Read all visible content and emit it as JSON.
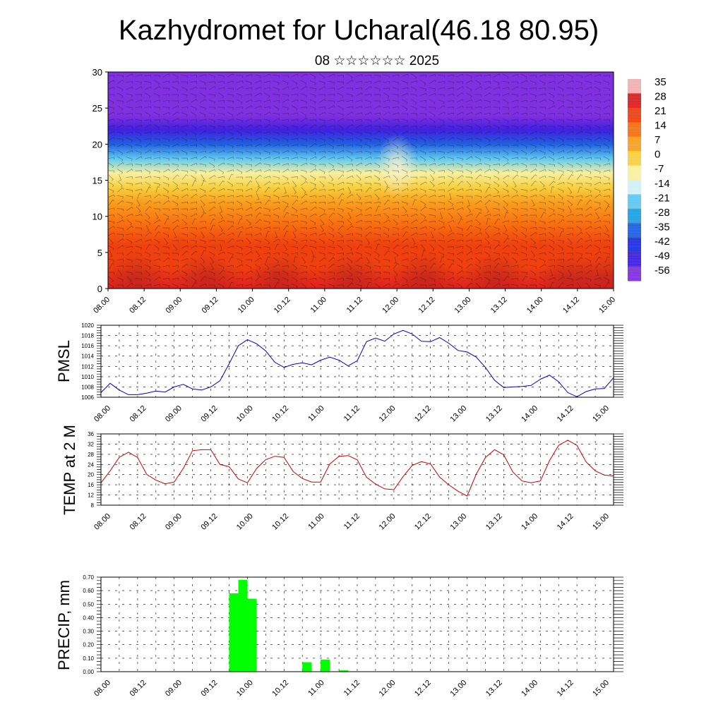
{
  "title": "Kazhydromet for Ucharal(46.18 80.95)",
  "subtitle": "08 ☆☆☆☆☆☆ 2025",
  "colorbar": {
    "labels": [
      "35",
      "28",
      "21",
      "14",
      "7",
      "0",
      "-7",
      "-14",
      "-21",
      "-28",
      "-35",
      "-42",
      "-49",
      "-56"
    ],
    "colors": [
      "#f0b0b0",
      "#dc2020",
      "#f04010",
      "#f87010",
      "#f8a020",
      "#f8d040",
      "#f8f0a0",
      "#d0f0f8",
      "#60c8f0",
      "#20a0e0",
      "#2060e0",
      "#2030e0",
      "#4020e0",
      "#8030e0"
    ]
  },
  "time_labels": [
    "08.00",
    "08.12",
    "09.00",
    "09.12",
    "10.00",
    "10.12",
    "11.00",
    "11.12",
    "12.00",
    "12.12",
    "13.00",
    "13.12",
    "14.00",
    "14.12",
    "15.00"
  ],
  "chart_data": [
    {
      "type": "heatmap",
      "title": "Kazhydromet for Ucharal(46.18 80.95)",
      "subtitle": "08 ☆☆☆☆☆☆ 2025",
      "ylim": [
        0,
        30
      ],
      "yticks": [
        0,
        5,
        10,
        15,
        20,
        25,
        30
      ],
      "xlim": [
        0,
        168
      ],
      "colorbar_range": [
        -56,
        35
      ],
      "level_temperature_profile": {
        "levels": [
          0,
          3,
          6,
          9,
          12,
          14,
          16,
          18,
          20,
          22,
          24,
          26,
          28,
          30
        ],
        "values": [
          25,
          22,
          18,
          12,
          6,
          0,
          -7,
          -18,
          -35,
          -48,
          -56,
          -52,
          -50,
          -50
        ]
      }
    },
    {
      "type": "line",
      "ylabel": "PMSL",
      "ylim": [
        1006,
        1020
      ],
      "yticks": [
        1006,
        1008,
        1010,
        1012,
        1014,
        1016,
        1018,
        1020
      ],
      "color": "#0000cc",
      "x_hours": [
        0,
        3,
        6,
        9,
        12,
        15,
        18,
        21,
        24,
        27,
        30,
        33,
        36,
        39,
        42,
        45,
        48,
        51,
        54,
        57,
        60,
        63,
        66,
        69,
        72,
        75,
        78,
        81,
        84,
        87,
        90,
        93,
        96,
        99,
        102,
        105,
        108,
        111,
        114,
        117,
        120,
        123,
        126,
        129,
        132,
        135,
        138,
        141,
        144,
        147,
        150,
        153,
        156,
        159,
        162,
        165,
        168
      ],
      "values": [
        1006.9,
        1008.7,
        1007.4,
        1006.5,
        1006.5,
        1006.8,
        1007.2,
        1007.0,
        1008.0,
        1008.5,
        1007.6,
        1007.4,
        1008.0,
        1009.2,
        1012.5,
        1016.0,
        1017.2,
        1016.4,
        1015.0,
        1012.8,
        1011.8,
        1012.4,
        1012.7,
        1012.3,
        1013.2,
        1013.8,
        1013.2,
        1012.1,
        1013.1,
        1016.8,
        1017.5,
        1016.9,
        1018.3,
        1019.0,
        1018.3,
        1016.9,
        1016.8,
        1017.6,
        1016.5,
        1015.1,
        1014.8,
        1013.8,
        1011.8,
        1009.3,
        1007.9,
        1008.0,
        1008.1,
        1008.3,
        1009.5,
        1010.3,
        1009.0,
        1006.9,
        1006.1,
        1007.1,
        1007.6,
        1007.7,
        1009.8
      ]
    },
    {
      "type": "line",
      "ylabel": "TEMP at 2 M",
      "ylim": [
        8,
        36
      ],
      "yticks": [
        8,
        12,
        16,
        20,
        24,
        28,
        32,
        36
      ],
      "color": "#cc0000",
      "x_hours": [
        0,
        3,
        6,
        9,
        12,
        15,
        18,
        21,
        24,
        27,
        30,
        33,
        36,
        39,
        42,
        45,
        48,
        51,
        54,
        57,
        60,
        63,
        66,
        69,
        72,
        75,
        78,
        81,
        84,
        87,
        90,
        93,
        96,
        99,
        102,
        105,
        108,
        111,
        114,
        117,
        120,
        123,
        126,
        129,
        132,
        135,
        138,
        141,
        144,
        147,
        150,
        153,
        156,
        159,
        162,
        165,
        168
      ],
      "values": [
        16.8,
        21.5,
        26.8,
        28.8,
        26.7,
        20.1,
        17.8,
        16.4,
        17.1,
        22.5,
        29.4,
        29.8,
        29.8,
        24.0,
        23.1,
        18.3,
        16.8,
        22.4,
        25.9,
        27.2,
        26.8,
        21.2,
        18.5,
        17.1,
        17.1,
        24.2,
        27.2,
        27.5,
        25.8,
        19.0,
        16.3,
        14.4,
        14.1,
        19.2,
        23.6,
        25.1,
        24.2,
        19.0,
        16.0,
        13.5,
        11.6,
        20.2,
        26.7,
        29.8,
        27.8,
        21.0,
        17.5,
        16.8,
        17.5,
        25.5,
        31.5,
        33.5,
        31.5,
        25.0,
        21.5,
        19.8,
        19.5
      ]
    },
    {
      "type": "bar",
      "ylabel": "PRECIP, mm",
      "ylim": [
        0,
        0.7
      ],
      "yticks": [
        "0.00",
        "0.10",
        "0.20",
        "0.30",
        "0.40",
        "0.50",
        "0.60",
        "0.70"
      ],
      "color": "#00ff00",
      "bars": [
        {
          "x_hours": 43.5,
          "value": 0.58
        },
        {
          "x_hours": 46.5,
          "value": 0.68
        },
        {
          "x_hours": 49.5,
          "value": 0.54
        },
        {
          "x_hours": 67.5,
          "value": 0.07
        },
        {
          "x_hours": 73.5,
          "value": 0.09
        },
        {
          "x_hours": 79.5,
          "value": 0.01
        }
      ]
    }
  ]
}
